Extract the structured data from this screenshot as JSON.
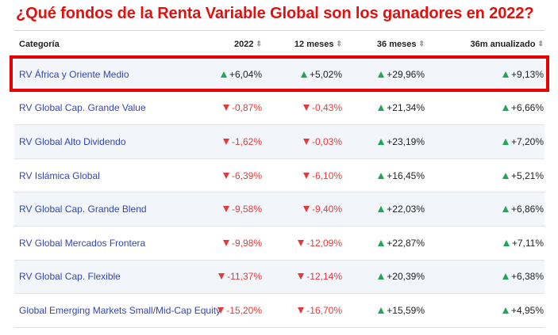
{
  "title": "¿Qué fondos de la Renta Variable Global son los ganadores en 2022?",
  "columns": [
    "Categoría",
    "2022",
    "12 meses",
    "36 meses",
    "36m anualizado"
  ],
  "sort_glyph": "⇕",
  "rows": [
    {
      "name": "RV África y Oriente Medio",
      "v": [
        [
          "up",
          "+6,04%"
        ],
        [
          "up",
          "+5,02%"
        ],
        [
          "up",
          "+29,96%"
        ],
        [
          "up",
          "+9,13%"
        ]
      ]
    },
    {
      "name": "RV Global Cap. Grande Value",
      "v": [
        [
          "down",
          "-0,87%"
        ],
        [
          "down",
          "-0,43%"
        ],
        [
          "up",
          "+21,34%"
        ],
        [
          "up",
          "+6,66%"
        ]
      ]
    },
    {
      "name": "RV Global Alto Dividendo",
      "v": [
        [
          "down",
          "-1,62%"
        ],
        [
          "down",
          "-0,03%"
        ],
        [
          "up",
          "+23,19%"
        ],
        [
          "up",
          "+7,20%"
        ]
      ]
    },
    {
      "name": "RV Islámica Global",
      "v": [
        [
          "down",
          "-6,39%"
        ],
        [
          "down",
          "-6,10%"
        ],
        [
          "up",
          "+16,45%"
        ],
        [
          "up",
          "+5,21%"
        ]
      ]
    },
    {
      "name": "RV Global Cap. Grande Blend",
      "v": [
        [
          "down",
          "-9,58%"
        ],
        [
          "down",
          "-9,40%"
        ],
        [
          "up",
          "+22,03%"
        ],
        [
          "up",
          "+6,86%"
        ]
      ]
    },
    {
      "name": "RV Global Mercados Frontera",
      "v": [
        [
          "down",
          "-9,98%"
        ],
        [
          "down",
          "-12,09%"
        ],
        [
          "up",
          "+22,87%"
        ],
        [
          "up",
          "+7,11%"
        ]
      ]
    },
    {
      "name": "RV Global Cap. Flexible",
      "v": [
        [
          "down",
          "-11,37%"
        ],
        [
          "down",
          "-12,14%"
        ],
        [
          "up",
          "+20,39%"
        ],
        [
          "up",
          "+6,38%"
        ]
      ]
    },
    {
      "name": "Global Emerging Markets Small/Mid-Cap Equity",
      "v": [
        [
          "down",
          "-15,20%"
        ],
        [
          "down",
          "-16,70%"
        ],
        [
          "up",
          "+15,59%"
        ],
        [
          "up",
          "+4,95%"
        ]
      ]
    }
  ],
  "colors": {
    "title": "#e0110f",
    "positive": "#1ea853",
    "negative": "#e23b3b",
    "link": "#3347b0",
    "highlight": "#e60000"
  },
  "icons": {
    "up": "triangle-up-icon",
    "down": "triangle-down-icon",
    "sort": "sort-icon"
  }
}
